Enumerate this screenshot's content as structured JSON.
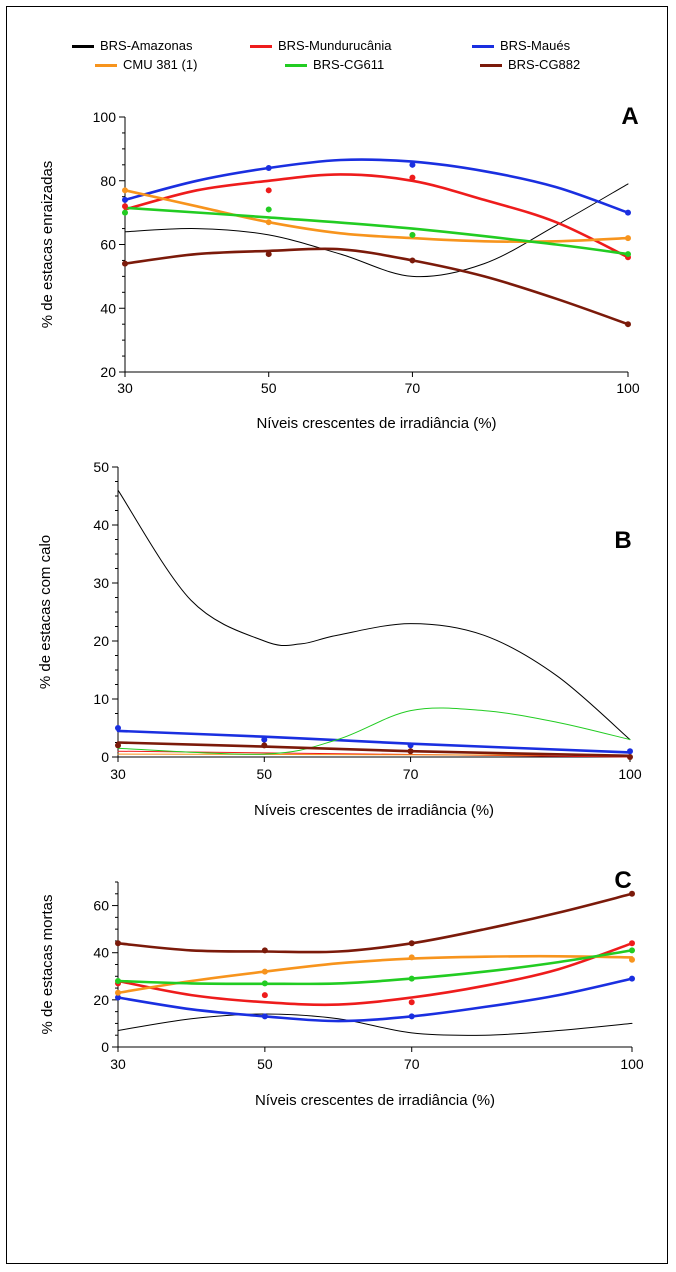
{
  "legend": [
    {
      "label": "BRS-Amazonas",
      "color": "#000000"
    },
    {
      "label": "BRS-Mundurucânia",
      "color": "#ee1c1c"
    },
    {
      "label": "BRS-Maués",
      "color": "#1a2fe0"
    },
    {
      "label": "CMU 381 (1)",
      "color": "#f7941d"
    },
    {
      "label": "BRS-CG611",
      "color": "#22cc22"
    },
    {
      "label": "BRS-CG882",
      "color": "#7b1a0a"
    }
  ],
  "chart_data": [
    {
      "type": "scatter",
      "panel_letter": "A",
      "xlabel": "Níveis crescentes de irradiância (%)",
      "ylabel": "% de estacas enraizadas",
      "x": [
        30,
        50,
        70,
        100
      ],
      "xticks": [
        "30",
        "50",
        "70",
        "100"
      ],
      "ylim": [
        20,
        100
      ],
      "yticks": [
        "20",
        "40",
        "60",
        "80",
        "100"
      ],
      "series": [
        {
          "name": "BRS-Amazonas",
          "color": "#000000",
          "points": [],
          "curve": [
            [
              30,
              64
            ],
            [
              40,
              65
            ],
            [
              50,
              63
            ],
            [
              60,
              57
            ],
            [
              70,
              50
            ],
            [
              80,
              54
            ],
            [
              90,
              66
            ],
            [
              100,
              79
            ]
          ],
          "thin": true
        },
        {
          "name": "BRS-Mundurucânia",
          "color": "#ee1c1c",
          "points": [
            72,
            77,
            81,
            56
          ],
          "curve": [
            [
              30,
              71
            ],
            [
              40,
              77
            ],
            [
              50,
              80
            ],
            [
              60,
              82
            ],
            [
              70,
              80
            ],
            [
              80,
              74
            ],
            [
              90,
              67
            ],
            [
              100,
              56
            ]
          ]
        },
        {
          "name": "BRS-Maués",
          "color": "#1a2fe0",
          "points": [
            74,
            84,
            85,
            70
          ],
          "curve": [
            [
              30,
              74
            ],
            [
              40,
              80
            ],
            [
              50,
              84
            ],
            [
              60,
              86.5
            ],
            [
              70,
              86
            ],
            [
              80,
              83
            ],
            [
              90,
              78
            ],
            [
              100,
              70
            ]
          ]
        },
        {
          "name": "CMU 381 (1)",
          "color": "#f7941d",
          "points": [
            77,
            67,
            63,
            62
          ],
          "curve": [
            [
              30,
              77
            ],
            [
              40,
              72
            ],
            [
              50,
              67
            ],
            [
              60,
              63.5
            ],
            [
              70,
              62
            ],
            [
              80,
              61
            ],
            [
              90,
              61
            ],
            [
              100,
              62
            ]
          ]
        },
        {
          "name": "BRS-CG611",
          "color": "#22cc22",
          "points": [
            70,
            71,
            63,
            57
          ],
          "curve": [
            [
              30,
              71.5
            ],
            [
              50,
              68.5
            ],
            [
              70,
              65
            ],
            [
              90,
              60
            ],
            [
              100,
              57
            ]
          ]
        },
        {
          "name": "BRS-CG882",
          "color": "#7b1a0a",
          "points": [
            54,
            57,
            55,
            35
          ],
          "curve": [
            [
              30,
              54
            ],
            [
              40,
              57
            ],
            [
              50,
              58
            ],
            [
              60,
              58.5
            ],
            [
              70,
              55
            ],
            [
              80,
              50
            ],
            [
              90,
              43
            ],
            [
              100,
              35
            ]
          ]
        }
      ]
    },
    {
      "type": "scatter",
      "panel_letter": "B",
      "xlabel": "Níveis crescentes de irradiância (%)",
      "ylabel": "% de estacas com calo",
      "x": [
        30,
        50,
        70,
        100
      ],
      "xticks": [
        "30",
        "50",
        "70",
        "100"
      ],
      "ylim": [
        0,
        50
      ],
      "yticks": [
        "0",
        "10",
        "20",
        "30",
        "40",
        "50"
      ],
      "series": [
        {
          "name": "BRS-Amazonas",
          "color": "#000000",
          "points": [],
          "curve": [
            [
              30,
              46
            ],
            [
              40,
              27
            ],
            [
              50,
              20
            ],
            [
              55,
              19.5
            ],
            [
              60,
              21
            ],
            [
              70,
              23
            ],
            [
              80,
              21
            ],
            [
              90,
              14
            ],
            [
              100,
              3
            ]
          ],
          "thin": true
        },
        {
          "name": "BRS-Mundurucânia",
          "color": "#ee1c1c",
          "points": [],
          "curve": [
            [
              30,
              1
            ],
            [
              100,
              0
            ]
          ],
          "thin": true
        },
        {
          "name": "BRS-Maués",
          "color": "#1a2fe0",
          "points": [
            5,
            3,
            2,
            1
          ],
          "curve": [
            [
              30,
              4.5
            ],
            [
              50,
              3.5
            ],
            [
              70,
              2.3
            ],
            [
              100,
              0.8
            ]
          ]
        },
        {
          "name": "CMU 381 (1)",
          "color": "#f7941d",
          "points": [],
          "curve": [
            [
              30,
              0.5
            ],
            [
              100,
              0.3
            ]
          ],
          "thin": true
        },
        {
          "name": "BRS-CG611",
          "color": "#22cc22",
          "points": [],
          "curve": [
            [
              30,
              1.5
            ],
            [
              50,
              0.5
            ],
            [
              60,
              3
            ],
            [
              70,
              8
            ],
            [
              80,
              8
            ],
            [
              90,
              6
            ],
            [
              100,
              3
            ]
          ],
          "thin": true
        },
        {
          "name": "BRS-CG882",
          "color": "#7b1a0a",
          "points": [
            2,
            2,
            1,
            0
          ],
          "curve": [
            [
              30,
              2.5
            ],
            [
              50,
              1.8
            ],
            [
              70,
              1
            ],
            [
              100,
              0.2
            ]
          ]
        }
      ]
    },
    {
      "type": "scatter",
      "panel_letter": "C",
      "xlabel": "Níveis crescentes de irradiância (%)",
      "ylabel": "% de estacas mortas",
      "x": [
        30,
        50,
        70,
        100
      ],
      "xticks": [
        "30",
        "50",
        "70",
        "100"
      ],
      "ylim": [
        0,
        70
      ],
      "yticks": [
        "0",
        "20",
        "40",
        "60"
      ],
      "series": [
        {
          "name": "BRS-Amazonas",
          "color": "#000000",
          "points": [],
          "curve": [
            [
              30,
              7
            ],
            [
              40,
              12
            ],
            [
              50,
              14
            ],
            [
              60,
              12
            ],
            [
              70,
              6
            ],
            [
              80,
              5
            ],
            [
              90,
              7
            ],
            [
              100,
              10
            ]
          ],
          "thin": true
        },
        {
          "name": "BRS-Mundurucânia",
          "color": "#ee1c1c",
          "points": [
            27,
            22,
            19,
            44
          ],
          "curve": [
            [
              30,
              28
            ],
            [
              40,
              22
            ],
            [
              50,
              19
            ],
            [
              60,
              18
            ],
            [
              70,
              21
            ],
            [
              80,
              26
            ],
            [
              90,
              33
            ],
            [
              100,
              44
            ]
          ]
        },
        {
          "name": "BRS-Maués",
          "color": "#1a2fe0",
          "points": [
            21,
            13,
            13,
            29
          ],
          "curve": [
            [
              30,
              21
            ],
            [
              40,
              16
            ],
            [
              50,
              13
            ],
            [
              60,
              11
            ],
            [
              70,
              13
            ],
            [
              80,
              17
            ],
            [
              90,
              22
            ],
            [
              100,
              29
            ]
          ]
        },
        {
          "name": "CMU 381 (1)",
          "color": "#f7941d",
          "points": [
            23,
            32,
            38,
            37
          ],
          "curve": [
            [
              30,
              23
            ],
            [
              40,
              28
            ],
            [
              50,
              32
            ],
            [
              60,
              35.5
            ],
            [
              70,
              37.5
            ],
            [
              80,
              38.3
            ],
            [
              90,
              38.5
            ],
            [
              100,
              38
            ]
          ]
        },
        {
          "name": "BRS-CG611",
          "color": "#22cc22",
          "points": [
            28,
            27,
            29,
            41
          ],
          "curve": [
            [
              30,
              28
            ],
            [
              40,
              27
            ],
            [
              50,
              26.8
            ],
            [
              60,
              27
            ],
            [
              70,
              29
            ],
            [
              80,
              32
            ],
            [
              90,
              36
            ],
            [
              100,
              41
            ]
          ]
        },
        {
          "name": "BRS-CG882",
          "color": "#7b1a0a",
          "points": [
            44,
            41,
            44,
            65
          ],
          "curve": [
            [
              30,
              44
            ],
            [
              40,
              41
            ],
            [
              50,
              40.5
            ],
            [
              60,
              40.5
            ],
            [
              70,
              44
            ],
            [
              80,
              50
            ],
            [
              90,
              57
            ],
            [
              100,
              65
            ]
          ]
        }
      ]
    }
  ]
}
